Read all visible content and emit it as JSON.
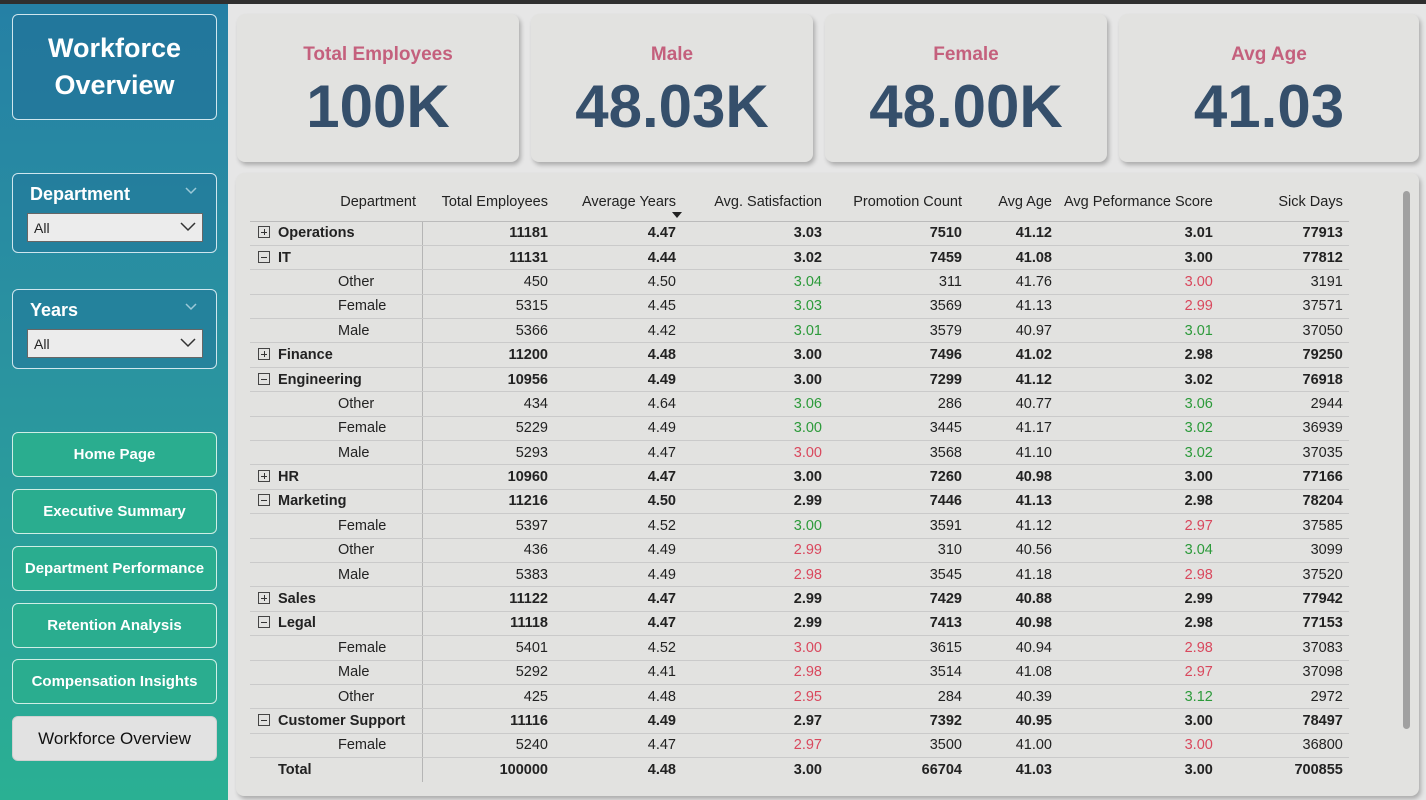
{
  "sidebar": {
    "title_line1": "Workforce",
    "title_line2": "Overview",
    "slicers": [
      {
        "label": "Department",
        "value": "All"
      },
      {
        "label": "Years",
        "value": "All"
      }
    ],
    "nav": [
      {
        "label": "Home Page",
        "active": false
      },
      {
        "label": "Executive Summary",
        "active": false
      },
      {
        "label": "Department Performance",
        "active": false
      },
      {
        "label": "Retention Analysis",
        "active": false
      },
      {
        "label": "Compensation Insights",
        "active": false
      },
      {
        "label": "Workforce Overview",
        "active": true
      }
    ]
  },
  "kpis": [
    {
      "title": "Total Employees",
      "value": "100K"
    },
    {
      "title": "Male",
      "value": "48.03K"
    },
    {
      "title": "Female",
      "value": "48.00K"
    },
    {
      "title": "Avg Age",
      "value": "41.03"
    }
  ],
  "colors": {
    "kpi_title": "#c4607d",
    "kpi_value": "#354f6b",
    "positive": "#2c9a3a",
    "negative": "#d9485d",
    "nav_button": "#2aad8f"
  },
  "matrix": {
    "columns": [
      "Department",
      "Total Employees",
      "Average Years",
      "Avg. Satisfaction",
      "Promotion Count",
      "Avg Age",
      "Avg Peformance Score",
      "Sick Days"
    ],
    "sorted_column": "Average Years",
    "rows": [
      {
        "level": 0,
        "expanded": false,
        "cells": [
          "Operations",
          "11181",
          "4.47",
          "3.03",
          "7510",
          "41.12",
          "3.01",
          "77913"
        ]
      },
      {
        "level": 0,
        "expanded": true,
        "cells": [
          "IT",
          "11131",
          "4.44",
          "3.02",
          "7459",
          "41.08",
          "3.00",
          "77812"
        ]
      },
      {
        "level": 1,
        "cells": [
          "Other",
          "450",
          "4.50",
          "3.04",
          "311",
          "41.76",
          "3.00",
          "3191"
        ],
        "sat": "green",
        "perf": "red"
      },
      {
        "level": 1,
        "cells": [
          "Female",
          "5315",
          "4.45",
          "3.03",
          "3569",
          "41.13",
          "2.99",
          "37571"
        ],
        "sat": "green",
        "perf": "red"
      },
      {
        "level": 1,
        "cells": [
          "Male",
          "5366",
          "4.42",
          "3.01",
          "3579",
          "40.97",
          "3.01",
          "37050"
        ],
        "sat": "green",
        "perf": "green"
      },
      {
        "level": 0,
        "expanded": false,
        "cells": [
          "Finance",
          "11200",
          "4.48",
          "3.00",
          "7496",
          "41.02",
          "2.98",
          "79250"
        ]
      },
      {
        "level": 0,
        "expanded": true,
        "cells": [
          "Engineering",
          "10956",
          "4.49",
          "3.00",
          "7299",
          "41.12",
          "3.02",
          "76918"
        ]
      },
      {
        "level": 1,
        "cells": [
          "Other",
          "434",
          "4.64",
          "3.06",
          "286",
          "40.77",
          "3.06",
          "2944"
        ],
        "sat": "green",
        "perf": "green"
      },
      {
        "level": 1,
        "cells": [
          "Female",
          "5229",
          "4.49",
          "3.00",
          "3445",
          "41.17",
          "3.02",
          "36939"
        ],
        "sat": "green",
        "perf": "green"
      },
      {
        "level": 1,
        "cells": [
          "Male",
          "5293",
          "4.47",
          "3.00",
          "3568",
          "41.10",
          "3.02",
          "37035"
        ],
        "sat": "red",
        "perf": "green"
      },
      {
        "level": 0,
        "expanded": false,
        "cells": [
          "HR",
          "10960",
          "4.47",
          "3.00",
          "7260",
          "40.98",
          "3.00",
          "77166"
        ]
      },
      {
        "level": 0,
        "expanded": true,
        "cells": [
          "Marketing",
          "11216",
          "4.50",
          "2.99",
          "7446",
          "41.13",
          "2.98",
          "78204"
        ]
      },
      {
        "level": 1,
        "cells": [
          "Female",
          "5397",
          "4.52",
          "3.00",
          "3591",
          "41.12",
          "2.97",
          "37585"
        ],
        "sat": "green",
        "perf": "red"
      },
      {
        "level": 1,
        "cells": [
          "Other",
          "436",
          "4.49",
          "2.99",
          "310",
          "40.56",
          "3.04",
          "3099"
        ],
        "sat": "red",
        "perf": "green"
      },
      {
        "level": 1,
        "cells": [
          "Male",
          "5383",
          "4.49",
          "2.98",
          "3545",
          "41.18",
          "2.98",
          "37520"
        ],
        "sat": "red",
        "perf": "red"
      },
      {
        "level": 0,
        "expanded": false,
        "cells": [
          "Sales",
          "11122",
          "4.47",
          "2.99",
          "7429",
          "40.88",
          "2.99",
          "77942"
        ]
      },
      {
        "level": 0,
        "expanded": true,
        "cells": [
          "Legal",
          "11118",
          "4.47",
          "2.99",
          "7413",
          "40.98",
          "2.98",
          "77153"
        ]
      },
      {
        "level": 1,
        "cells": [
          "Female",
          "5401",
          "4.52",
          "3.00",
          "3615",
          "40.94",
          "2.98",
          "37083"
        ],
        "sat": "red",
        "perf": "red"
      },
      {
        "level": 1,
        "cells": [
          "Male",
          "5292",
          "4.41",
          "2.98",
          "3514",
          "41.08",
          "2.97",
          "37098"
        ],
        "sat": "red",
        "perf": "red"
      },
      {
        "level": 1,
        "cells": [
          "Other",
          "425",
          "4.48",
          "2.95",
          "284",
          "40.39",
          "3.12",
          "2972"
        ],
        "sat": "red",
        "perf": "green"
      },
      {
        "level": 0,
        "expanded": true,
        "cells": [
          "Customer Support",
          "11116",
          "4.49",
          "2.97",
          "7392",
          "40.95",
          "3.00",
          "78497"
        ]
      },
      {
        "level": 1,
        "cells": [
          "Female",
          "5240",
          "4.47",
          "2.97",
          "3500",
          "41.00",
          "3.00",
          "36800"
        ],
        "sat": "red",
        "perf": "red"
      }
    ],
    "total": [
      "Total",
      "100000",
      "4.48",
      "3.00",
      "66704",
      "41.03",
      "3.00",
      "700855"
    ]
  }
}
